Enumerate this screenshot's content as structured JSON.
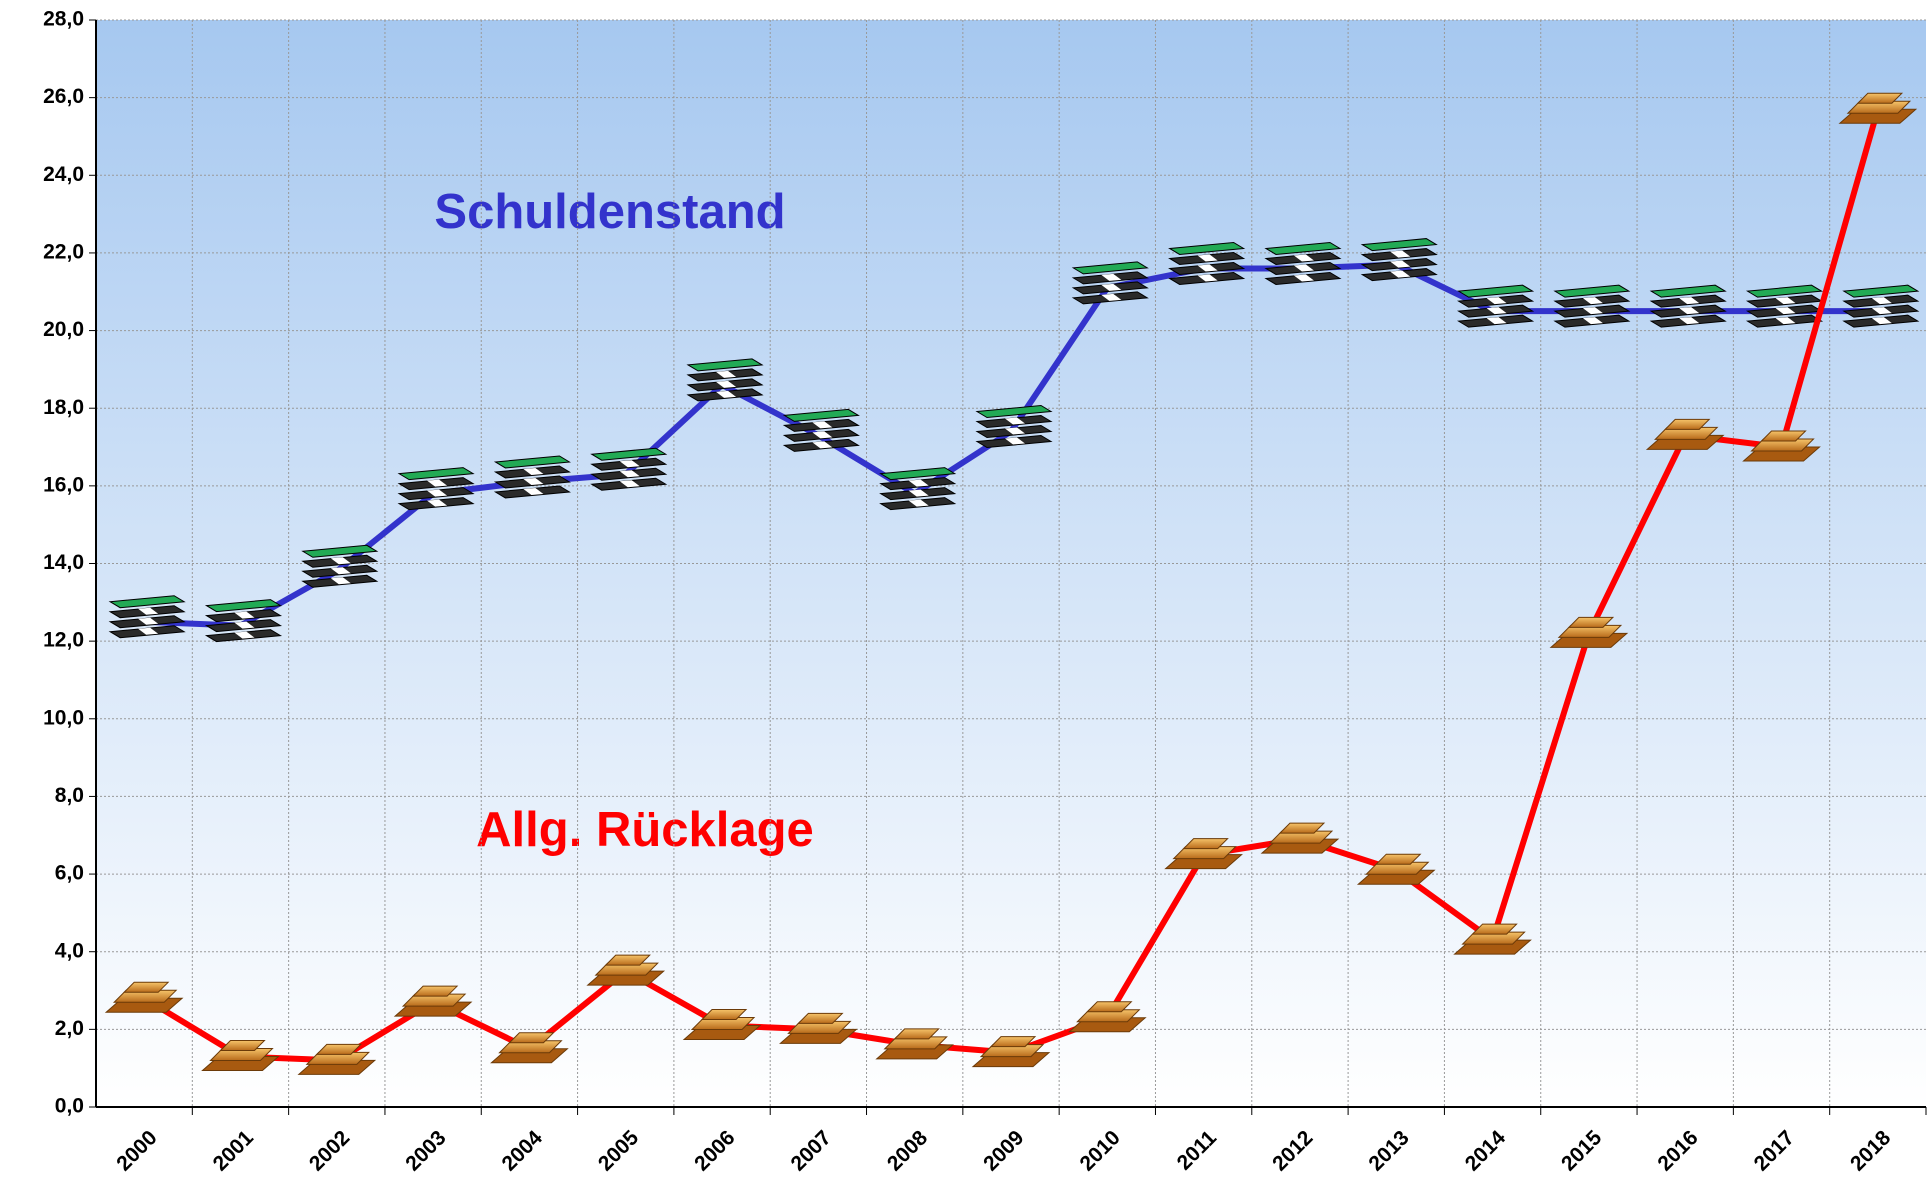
{
  "chart_data": {
    "type": "line",
    "categories": [
      "2000",
      "2001",
      "2002",
      "2003",
      "2004",
      "2005",
      "2006",
      "2007",
      "2008",
      "2009",
      "2010",
      "2011",
      "2012",
      "2013",
      "2014",
      "2015",
      "2016",
      "2017",
      "2018"
    ],
    "series": [
      {
        "name": "Schuldenstand",
        "color": "#3333cc",
        "values": [
          12.5,
          12.4,
          13.8,
          15.8,
          16.1,
          16.3,
          18.6,
          17.3,
          15.8,
          17.4,
          21.1,
          21.6,
          21.6,
          21.7,
          20.5,
          20.5,
          20.5,
          20.5,
          20.5
        ]
      },
      {
        "name": "Allg. Rücklage",
        "color": "#ff0000",
        "values": [
          2.8,
          1.3,
          1.2,
          2.7,
          1.5,
          3.5,
          2.1,
          2.0,
          1.6,
          1.4,
          2.3,
          6.5,
          6.9,
          6.1,
          4.3,
          12.2,
          17.3,
          17.0,
          25.7
        ]
      }
    ],
    "ylim": [
      0,
      28
    ],
    "yticks": [
      {
        "value": 0,
        "label": "0,0"
      },
      {
        "value": 2,
        "label": "2,0"
      },
      {
        "value": 4,
        "label": "4,0"
      },
      {
        "value": 6,
        "label": "6,0"
      },
      {
        "value": 8,
        "label": "8,0"
      },
      {
        "value": 10,
        "label": "10,0"
      },
      {
        "value": 12,
        "label": "12,0"
      },
      {
        "value": 14,
        "label": "14,0"
      },
      {
        "value": 16,
        "label": "16,0"
      },
      {
        "value": 18,
        "label": "18,0"
      },
      {
        "value": 20,
        "label": "20,0"
      },
      {
        "value": 22,
        "label": "22,0"
      },
      {
        "value": 24,
        "label": "24,0"
      },
      {
        "value": 26,
        "label": "26,0"
      },
      {
        "value": 28,
        "label": "28,0"
      }
    ],
    "grid": true
  }
}
